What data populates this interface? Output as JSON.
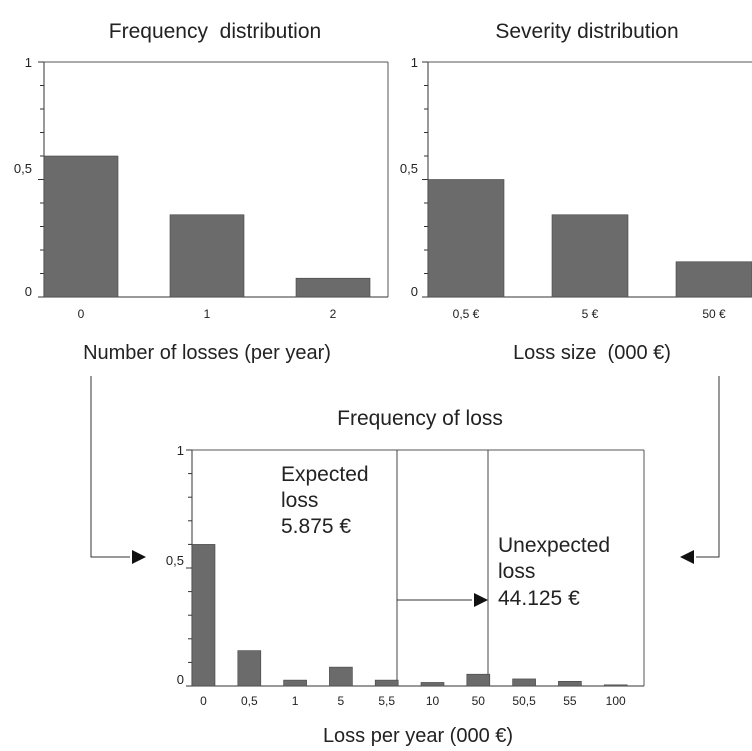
{
  "chart_data": [
    {
      "type": "bar",
      "title": "Frequency  distribution",
      "xlabel": "Number of losses (per year)",
      "categories": [
        "0",
        "1",
        "2"
      ],
      "values": [
        0.6,
        0.35,
        0.08
      ],
      "ylim": [
        0,
        1
      ],
      "yticks": [
        "0",
        "0,5",
        "1"
      ]
    },
    {
      "type": "bar",
      "title": "Severity distribution",
      "xlabel": "Loss size  (000 €)",
      "categories": [
        "0,5 €",
        "5 €",
        "50 €"
      ],
      "values": [
        0.5,
        0.35,
        0.15
      ],
      "ylim": [
        0,
        1
      ],
      "yticks": [
        "0",
        "0,5",
        "1"
      ]
    },
    {
      "type": "bar",
      "title": "Frequency of loss",
      "xlabel": "Loss per year (000 €)",
      "categories": [
        "0",
        "0,5",
        "1",
        "5",
        "5,5",
        "10",
        "50",
        "50,5",
        "55",
        "100"
      ],
      "values": [
        0.6,
        0.15,
        0.025,
        0.08,
        0.025,
        0.015,
        0.05,
        0.03,
        0.02,
        0.005
      ],
      "ylim": [
        0,
        1
      ],
      "yticks": [
        "0",
        "0,5",
        "1"
      ],
      "annotations": {
        "expected": [
          "Expected",
          "loss",
          "5.875 €"
        ],
        "unexpected": [
          "Unexpected",
          "loss",
          "44.125 €"
        ]
      }
    }
  ]
}
